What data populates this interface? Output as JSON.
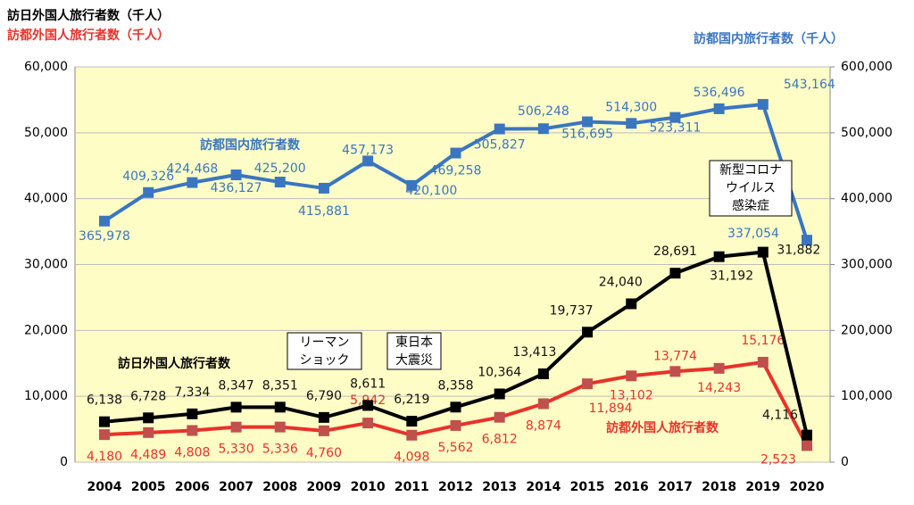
{
  "chart_data": {
    "type": "line",
    "ylabel": [
      "訪日外国人旅行者数（千人）",
      "訪都外国人旅行者数（千人）"
    ],
    "y2label": "訪都国内旅行者数（千人）",
    "categories": [
      "2004",
      "2005",
      "2006",
      "2007",
      "2008",
      "2009",
      "2010",
      "2011",
      "2012",
      "2013",
      "2014",
      "2015",
      "2016",
      "2017",
      "2018",
      "2019",
      "2020"
    ],
    "series": [
      {
        "name": "訪日外国人旅行者数",
        "color": "#000000",
        "axis": "y",
        "values": [
          6138,
          6728,
          7334,
          8347,
          8351,
          6790,
          8611,
          6219,
          8358,
          10364,
          13413,
          19737,
          24040,
          28691,
          31192,
          31882,
          4116
        ],
        "value_labels": [
          "6,138",
          "6,728",
          "7,334",
          "8,347",
          "8,351",
          "6,790",
          "8,611",
          "6,219",
          "8,358",
          "10,364",
          "13,413",
          "19,737",
          "24,040",
          "28,691",
          "31,192",
          "31,882",
          "4,116"
        ]
      },
      {
        "name": "訪都外国人旅行者数",
        "color": "#e8322a",
        "axis": "y",
        "values": [
          4180,
          4489,
          4808,
          5330,
          5336,
          4760,
          5942,
          4098,
          5562,
          6812,
          8874,
          11894,
          13102,
          13774,
          14243,
          15176,
          2523
        ],
        "value_labels": [
          "4,180",
          "4,489",
          "4,808",
          "5,330",
          "5,336",
          "4,760",
          "5,942",
          "4,098",
          "5,562",
          "6,812",
          "8,874",
          "11,894",
          "13,102",
          "13,774",
          "14,243",
          "15,176",
          "2,523"
        ]
      },
      {
        "name": "訪都国内旅行者数",
        "color": "#3a76c0",
        "axis": "y2",
        "values": [
          365978,
          409326,
          424468,
          436127,
          425200,
          415881,
          457173,
          420100,
          469258,
          505827,
          506248,
          516695,
          514300,
          523311,
          536496,
          543164,
          337054
        ],
        "value_labels": [
          "365,978",
          "409,326",
          "424,468",
          "436,127",
          "425,200",
          "415,881",
          "457,173",
          "420,100",
          "469,258",
          "505,827",
          "506,248",
          "516,695",
          "514,300",
          "523,311",
          "536,496",
          "543,164",
          "337,054"
        ]
      }
    ],
    "ylim": [
      0,
      60000
    ],
    "yticks": [
      0,
      {
        "value": 10000,
        "label": "10,000"
      },
      {
        "value": 20000,
        "label": "20,000"
      },
      {
        "value": 30000,
        "label": "30,000"
      },
      {
        "value": 40000,
        "label": "40,000"
      },
      {
        "value": 50000,
        "label": "50,000"
      },
      {
        "value": 60000,
        "label": "60,000"
      }
    ],
    "y2lim": [
      0,
      600000
    ],
    "y2ticks": [
      0,
      {
        "value": 100000,
        "label": "100,000"
      },
      {
        "value": 200000,
        "label": "200,000"
      },
      {
        "value": 300000,
        "label": "300,000"
      },
      {
        "value": 400000,
        "label": "400,000"
      },
      {
        "value": 500000,
        "label": "500,000"
      },
      {
        "value": 600000,
        "label": "600,000"
      }
    ],
    "grid": true,
    "annotations": [
      [
        "リーマン",
        "ショック"
      ],
      [
        "東日本",
        "大震災"
      ],
      [
        "新型コロナ",
        "ウイルス",
        "感染症"
      ]
    ]
  }
}
